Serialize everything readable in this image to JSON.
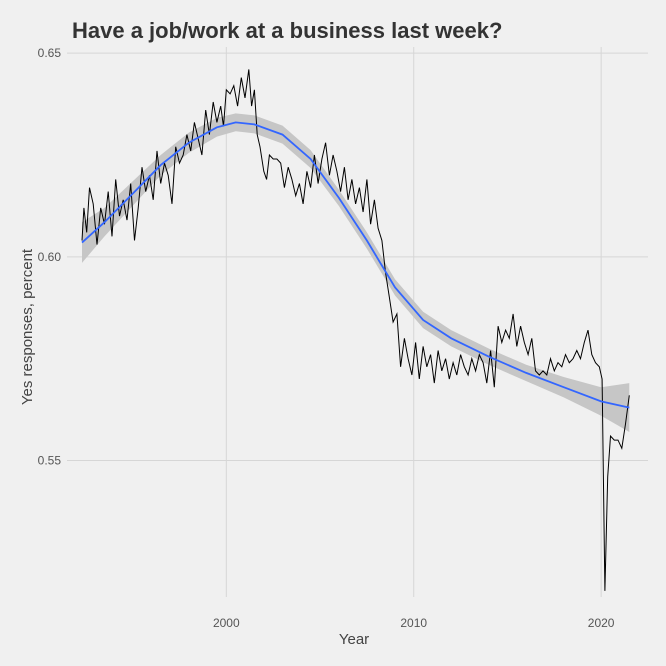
{
  "chart_data": {
    "type": "line",
    "title": "Have a job/work at a business last week?",
    "xlabel": "Year",
    "ylabel": "Yes responses, percent",
    "xlim": [
      1991.5,
      2022.5
    ],
    "ylim": [
      0.5165,
      0.6515
    ],
    "x_ticks": [
      {
        "value": 2000,
        "label": "2000"
      },
      {
        "value": 2010,
        "label": "2010"
      },
      {
        "value": 2020,
        "label": "2020"
      }
    ],
    "y_ticks": [
      {
        "value": 0.55,
        "label": "0.55"
      },
      {
        "value": 0.6,
        "label": "0.60"
      },
      {
        "value": 0.65,
        "label": "0.65"
      }
    ],
    "grid": true,
    "series": [
      {
        "kind": "raw",
        "color": "#000000",
        "points": [
          [
            1992.3,
            0.604
          ],
          [
            1992.4,
            0.612
          ],
          [
            1992.55,
            0.606
          ],
          [
            1992.7,
            0.617
          ],
          [
            1992.9,
            0.613
          ],
          [
            1993.1,
            0.603
          ],
          [
            1993.3,
            0.612
          ],
          [
            1993.5,
            0.608
          ],
          [
            1993.7,
            0.616
          ],
          [
            1993.9,
            0.605
          ],
          [
            1994.1,
            0.619
          ],
          [
            1994.3,
            0.61
          ],
          [
            1994.5,
            0.614
          ],
          [
            1994.7,
            0.609
          ],
          [
            1994.9,
            0.618
          ],
          [
            1995.1,
            0.604
          ],
          [
            1995.3,
            0.612
          ],
          [
            1995.5,
            0.622
          ],
          [
            1995.7,
            0.616
          ],
          [
            1995.9,
            0.62
          ],
          [
            1996.1,
            0.614
          ],
          [
            1996.3,
            0.626
          ],
          [
            1996.5,
            0.618
          ],
          [
            1996.7,
            0.623
          ],
          [
            1996.9,
            0.62
          ],
          [
            1997.1,
            0.613
          ],
          [
            1997.3,
            0.627
          ],
          [
            1997.5,
            0.623
          ],
          [
            1997.7,
            0.625
          ],
          [
            1997.9,
            0.63
          ],
          [
            1998.1,
            0.626
          ],
          [
            1998.3,
            0.633
          ],
          [
            1998.5,
            0.629
          ],
          [
            1998.7,
            0.625
          ],
          [
            1998.9,
            0.636
          ],
          [
            1999.1,
            0.63
          ],
          [
            1999.3,
            0.638
          ],
          [
            1999.5,
            0.633
          ],
          [
            1999.7,
            0.637
          ],
          [
            1999.85,
            0.632
          ],
          [
            2000.0,
            0.641
          ],
          [
            2000.2,
            0.64
          ],
          [
            2000.4,
            0.642
          ],
          [
            2000.6,
            0.637
          ],
          [
            2000.8,
            0.644
          ],
          [
            2001.0,
            0.639
          ],
          [
            2001.2,
            0.646
          ],
          [
            2001.35,
            0.637
          ],
          [
            2001.5,
            0.641
          ],
          [
            2001.65,
            0.63
          ],
          [
            2001.8,
            0.627
          ],
          [
            2002.0,
            0.621
          ],
          [
            2002.15,
            0.619
          ],
          [
            2002.3,
            0.625
          ],
          [
            2002.5,
            0.624
          ],
          [
            2002.7,
            0.624
          ],
          [
            2002.9,
            0.623
          ],
          [
            2003.1,
            0.617
          ],
          [
            2003.3,
            0.622
          ],
          [
            2003.5,
            0.619
          ],
          [
            2003.7,
            0.615
          ],
          [
            2003.9,
            0.618
          ],
          [
            2004.1,
            0.613
          ],
          [
            2004.3,
            0.621
          ],
          [
            2004.5,
            0.617
          ],
          [
            2004.7,
            0.625
          ],
          [
            2004.9,
            0.618
          ],
          [
            2005.1,
            0.624
          ],
          [
            2005.3,
            0.628
          ],
          [
            2005.5,
            0.62
          ],
          [
            2005.7,
            0.625
          ],
          [
            2005.9,
            0.621
          ],
          [
            2006.1,
            0.616
          ],
          [
            2006.3,
            0.622
          ],
          [
            2006.5,
            0.614
          ],
          [
            2006.7,
            0.619
          ],
          [
            2006.9,
            0.613
          ],
          [
            2007.1,
            0.617
          ],
          [
            2007.3,
            0.611
          ],
          [
            2007.5,
            0.619
          ],
          [
            2007.7,
            0.608
          ],
          [
            2007.9,
            0.614
          ],
          [
            2008.1,
            0.607
          ],
          [
            2008.3,
            0.604
          ],
          [
            2008.5,
            0.596
          ],
          [
            2008.7,
            0.59
          ],
          [
            2008.9,
            0.584
          ],
          [
            2009.1,
            0.586
          ],
          [
            2009.3,
            0.573
          ],
          [
            2009.5,
            0.58
          ],
          [
            2009.7,
            0.575
          ],
          [
            2009.9,
            0.571
          ],
          [
            2010.1,
            0.579
          ],
          [
            2010.3,
            0.57
          ],
          [
            2010.5,
            0.578
          ],
          [
            2010.7,
            0.573
          ],
          [
            2010.9,
            0.576
          ],
          [
            2011.1,
            0.569
          ],
          [
            2011.3,
            0.577
          ],
          [
            2011.5,
            0.572
          ],
          [
            2011.7,
            0.575
          ],
          [
            2011.9,
            0.57
          ],
          [
            2012.1,
            0.574
          ],
          [
            2012.3,
            0.571
          ],
          [
            2012.5,
            0.576
          ],
          [
            2012.7,
            0.573
          ],
          [
            2012.9,
            0.571
          ],
          [
            2013.1,
            0.575
          ],
          [
            2013.3,
            0.572
          ],
          [
            2013.5,
            0.576
          ],
          [
            2013.7,
            0.574
          ],
          [
            2013.9,
            0.569
          ],
          [
            2014.1,
            0.577
          ],
          [
            2014.3,
            0.568
          ],
          [
            2014.5,
            0.583
          ],
          [
            2014.7,
            0.579
          ],
          [
            2014.9,
            0.582
          ],
          [
            2015.1,
            0.58
          ],
          [
            2015.3,
            0.586
          ],
          [
            2015.5,
            0.578
          ],
          [
            2015.7,
            0.583
          ],
          [
            2015.9,
            0.579
          ],
          [
            2016.1,
            0.576
          ],
          [
            2016.3,
            0.58
          ],
          [
            2016.5,
            0.572
          ],
          [
            2016.7,
            0.571
          ],
          [
            2016.9,
            0.572
          ],
          [
            2017.1,
            0.571
          ],
          [
            2017.3,
            0.575
          ],
          [
            2017.5,
            0.572
          ],
          [
            2017.7,
            0.574
          ],
          [
            2017.9,
            0.573
          ],
          [
            2018.1,
            0.576
          ],
          [
            2018.3,
            0.574
          ],
          [
            2018.5,
            0.575
          ],
          [
            2018.7,
            0.577
          ],
          [
            2018.9,
            0.575
          ],
          [
            2019.1,
            0.579
          ],
          [
            2019.3,
            0.582
          ],
          [
            2019.5,
            0.576
          ],
          [
            2019.7,
            0.574
          ],
          [
            2019.9,
            0.573
          ],
          [
            2020.05,
            0.57
          ],
          [
            2020.2,
            0.518
          ],
          [
            2020.35,
            0.546
          ],
          [
            2020.5,
            0.556
          ],
          [
            2020.7,
            0.555
          ],
          [
            2020.9,
            0.555
          ],
          [
            2021.1,
            0.553
          ],
          [
            2021.3,
            0.559
          ],
          [
            2021.5,
            0.566
          ]
        ]
      },
      {
        "kind": "smooth",
        "color": "#3366FF",
        "band_color": "#c6c6c6",
        "points": [
          [
            1992.3,
            0.6035,
            0.5985,
            0.6085
          ],
          [
            1993.5,
            0.6085,
            0.605,
            0.612
          ],
          [
            1995.0,
            0.6155,
            0.6125,
            0.6185
          ],
          [
            1996.5,
            0.6225,
            0.62,
            0.625
          ],
          [
            1998.0,
            0.628,
            0.6255,
            0.6305
          ],
          [
            1999.5,
            0.6318,
            0.6295,
            0.6341
          ],
          [
            2000.5,
            0.633,
            0.6308,
            0.6352
          ],
          [
            2001.5,
            0.6325,
            0.6303,
            0.6347
          ],
          [
            2003.0,
            0.63,
            0.6278,
            0.6322
          ],
          [
            2004.5,
            0.624,
            0.6218,
            0.6262
          ],
          [
            2006.0,
            0.6145,
            0.6125,
            0.6165
          ],
          [
            2007.5,
            0.604,
            0.602,
            0.606
          ],
          [
            2009.0,
            0.5925,
            0.5905,
            0.5945
          ],
          [
            2010.5,
            0.5845,
            0.5825,
            0.5865
          ],
          [
            2012.0,
            0.58,
            0.578,
            0.582
          ],
          [
            2014.0,
            0.5755,
            0.5735,
            0.5775
          ],
          [
            2016.0,
            0.5715,
            0.5695,
            0.5735
          ],
          [
            2018.0,
            0.568,
            0.5655,
            0.5705
          ],
          [
            2020.0,
            0.5645,
            0.561,
            0.568
          ],
          [
            2021.5,
            0.563,
            0.557,
            0.569
          ]
        ]
      }
    ]
  }
}
